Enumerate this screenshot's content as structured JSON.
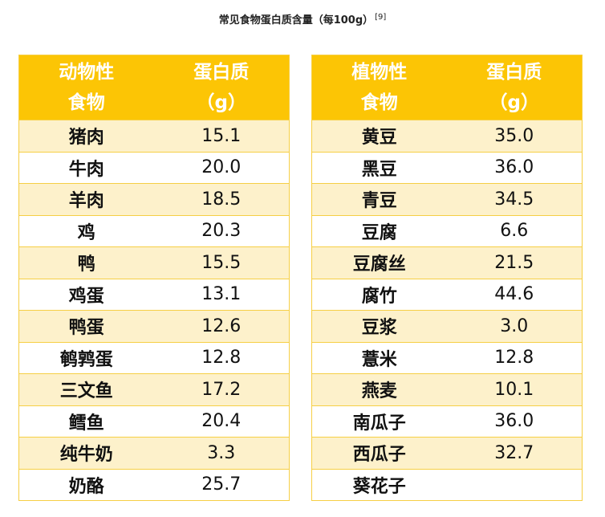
{
  "title": "常见食物蛋白质含量（每100g）",
  "title_ref": "[9]",
  "colors": {
    "header_bg": "#fcc505",
    "header_text": "#ffffff",
    "row_stripe": "#fdf1cb",
    "row_plain": "#ffffff",
    "border": "#f6cf45"
  },
  "animal": {
    "header_name_1": "动物性",
    "header_name_2": "食物",
    "header_val_1": "蛋白质",
    "header_val_2": "（g）",
    "rows": [
      {
        "name": "猪肉",
        "value": "15.1"
      },
      {
        "name": "牛肉",
        "value": "20.0"
      },
      {
        "name": "羊肉",
        "value": "18.5"
      },
      {
        "name": "鸡",
        "value": "20.3"
      },
      {
        "name": "鸭",
        "value": "15.5"
      },
      {
        "name": "鸡蛋",
        "value": "13.1"
      },
      {
        "name": "鸭蛋",
        "value": "12.6"
      },
      {
        "name": "鹌鹑蛋",
        "value": "12.8"
      },
      {
        "name": "三文鱼",
        "value": "17.2"
      },
      {
        "name": "鳕鱼",
        "value": "20.4"
      },
      {
        "name": "纯牛奶",
        "value": "3.3"
      },
      {
        "name": "奶酪",
        "value": "25.7"
      }
    ]
  },
  "plant": {
    "header_name_1": "植物性",
    "header_name_2": "食物",
    "header_val_1": "蛋白质",
    "header_val_2": "（g）",
    "rows": [
      {
        "name": "黄豆",
        "value": "35.0"
      },
      {
        "name": "黑豆",
        "value": "36.0"
      },
      {
        "name": "青豆",
        "value": "34.5"
      },
      {
        "name": "豆腐",
        "value": "6.6"
      },
      {
        "name": "豆腐丝",
        "value": "21.5"
      },
      {
        "name": "腐竹",
        "value": "44.6"
      },
      {
        "name": "豆浆",
        "value": "3.0"
      },
      {
        "name": "薏米",
        "value": "12.8"
      },
      {
        "name": "燕麦",
        "value": "10.1"
      },
      {
        "name": "南瓜子",
        "value": "36.0"
      },
      {
        "name": "西瓜子",
        "value": "32.7"
      },
      {
        "name": "葵花子",
        "value": ""
      }
    ]
  }
}
